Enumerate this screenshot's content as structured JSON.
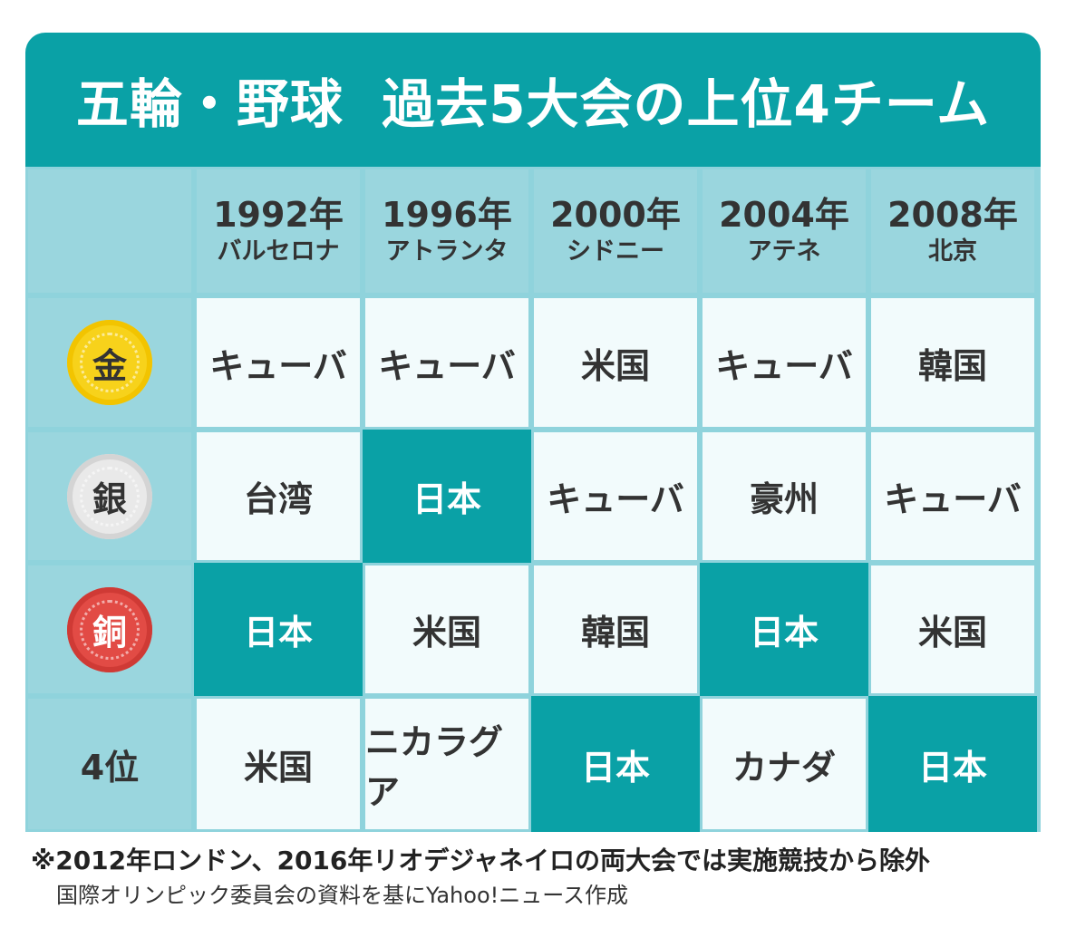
{
  "title": "五輪・野球  過去5大会の上位4チーム",
  "columns": [
    {
      "year": "1992年",
      "city": "バルセロナ"
    },
    {
      "year": "1996年",
      "city": "アトランタ"
    },
    {
      "year": "2000年",
      "city": "シドニー"
    },
    {
      "year": "2004年",
      "city": "アテネ"
    },
    {
      "year": "2008年",
      "city": "北京"
    }
  ],
  "rows": [
    {
      "label": "金",
      "medal": "gold-medal-icon",
      "cells": [
        "キューバ",
        "キューバ",
        "米国",
        "キューバ",
        "韓国"
      ],
      "japan": [
        false,
        false,
        false,
        false,
        false
      ]
    },
    {
      "label": "銀",
      "medal": "silver-medal-icon",
      "cells": [
        "台湾",
        "日本",
        "キューバ",
        "豪州",
        "キューバ"
      ],
      "japan": [
        false,
        true,
        false,
        false,
        false
      ]
    },
    {
      "label": "銅",
      "medal": "bronze-medal-icon",
      "cells": [
        "日本",
        "米国",
        "韓国",
        "日本",
        "米国"
      ],
      "japan": [
        true,
        false,
        false,
        true,
        false
      ]
    },
    {
      "label": "4位",
      "medal": "",
      "cells": [
        "米国",
        "ニカラグア",
        "日本",
        "カナダ",
        "日本"
      ],
      "japan": [
        false,
        false,
        true,
        false,
        true
      ]
    }
  ],
  "colors": {
    "accent": "#0aa1a6",
    "header": "#9ad6de",
    "cell": "#f2fbfc",
    "gold": "#f7d21b",
    "silver": "#e9e9e9",
    "bronze": "#e24b45"
  },
  "notes": {
    "note1": "※2012年ロンドン、2016年リオデジャネイロの両大会では実施競技から除外",
    "note2": "国際オリンピック委員会の資料を基にYahoo!ニュース作成"
  }
}
